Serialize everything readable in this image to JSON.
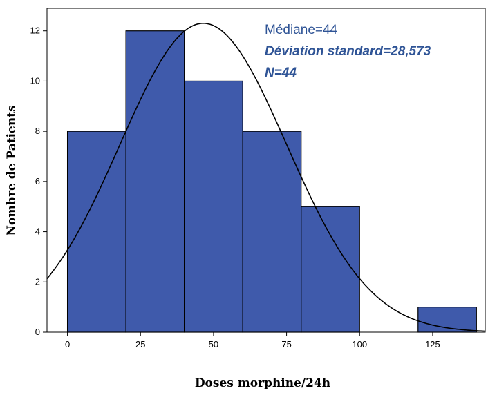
{
  "chart_data": {
    "type": "bar",
    "subtype": "histogram",
    "xlabel": "Doses morphine/24h",
    "ylabel": "Nombre de Patients",
    "xlim": [
      -7,
      143
    ],
    "ylim": [
      0,
      12.9
    ],
    "x_ticks": [
      0,
      25,
      50,
      75,
      100,
      125
    ],
    "y_ticks": [
      0,
      2,
      4,
      6,
      8,
      10,
      12
    ],
    "bins": [
      {
        "start": 0,
        "end": 20,
        "count": 8
      },
      {
        "start": 20,
        "end": 40,
        "count": 12
      },
      {
        "start": 40,
        "end": 60,
        "count": 10
      },
      {
        "start": 60,
        "end": 80,
        "count": 8
      },
      {
        "start": 80,
        "end": 100,
        "count": 5
      },
      {
        "start": 100,
        "end": 120,
        "count": 0
      },
      {
        "start": 120,
        "end": 140,
        "count": 1
      }
    ],
    "bar_color": "#3f5aab",
    "curve": {
      "type": "normal",
      "mean": 46.5,
      "std": 28.573,
      "peak": 12.3,
      "color": "#000000"
    },
    "annotations": {
      "median": "Médiane=44",
      "std_dev": "Déviation standard=28,573",
      "n": "N=44"
    },
    "annotation_color": "#2f5496",
    "grid": false
  }
}
